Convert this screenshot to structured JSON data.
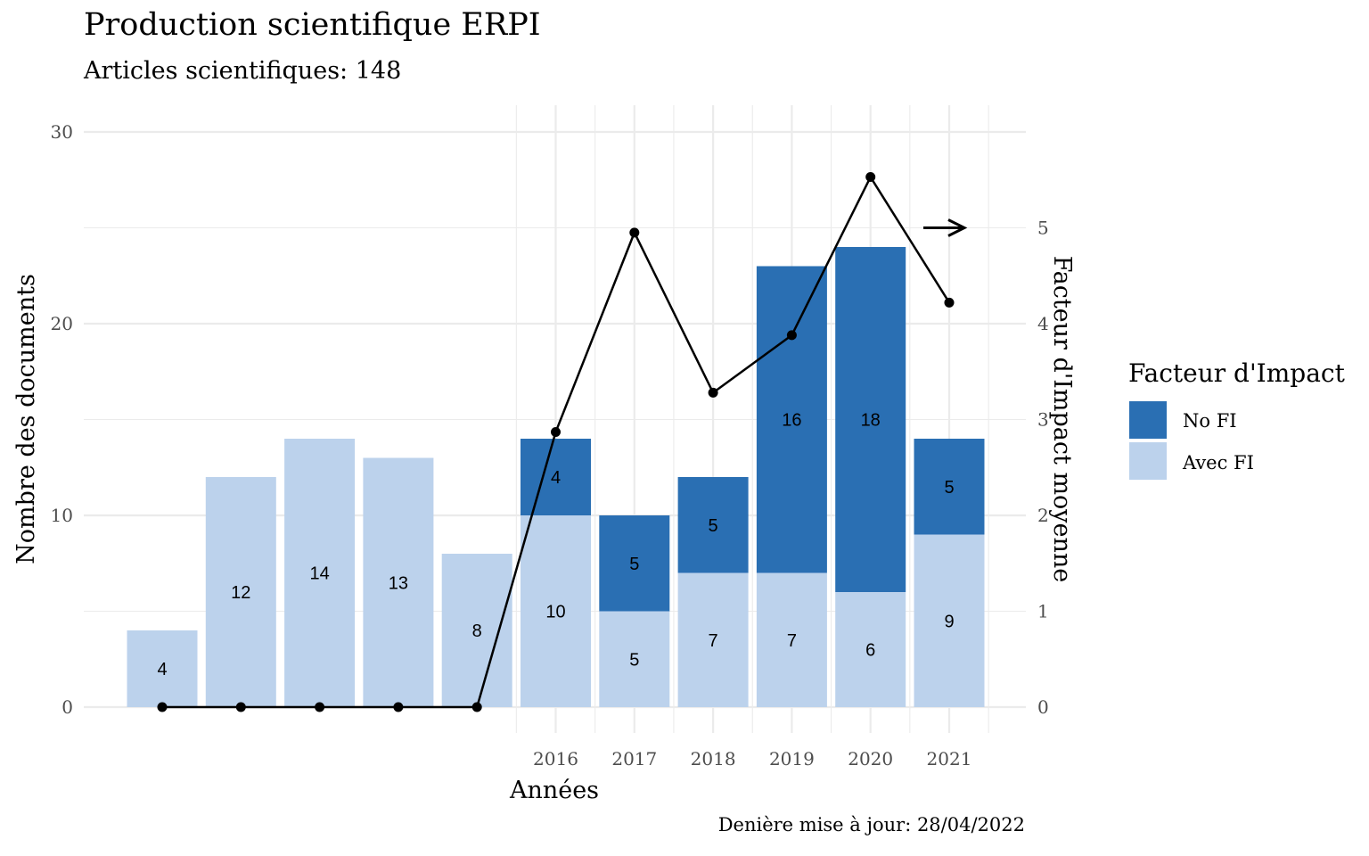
{
  "chart_data": {
    "type": "bar",
    "stacked": true,
    "title": "Production scientifique ERPI",
    "subtitle": "Articles scientifiques: 148",
    "caption": "Denière mise à jour: 28/04/2022",
    "xlabel": "Années",
    "ylabel": "Nombre des documents",
    "y2label": "Facteur d'Impact moyenne",
    "ylim": [
      0,
      30
    ],
    "y2lim": [
      0,
      6
    ],
    "y_ticks": [
      0,
      10,
      20,
      30
    ],
    "y2_ticks": [
      0,
      1,
      2,
      3,
      4,
      5
    ],
    "categories": [
      "",
      "",
      "",
      "",
      "",
      "2016",
      "2017",
      "2018",
      "2019",
      "2020",
      "2021"
    ],
    "grid": true,
    "legend": {
      "title": "Facteur d'Impact",
      "position": "right",
      "entries": [
        "No FI",
        "Avec FI"
      ]
    },
    "series": [
      {
        "name": "Avec FI",
        "color": "#bcd2ec",
        "values": [
          4,
          12,
          14,
          13,
          8,
          10,
          5,
          7,
          7,
          6,
          9
        ]
      },
      {
        "name": "No FI",
        "color": "#2a6fb3",
        "values": [
          0,
          0,
          0,
          0,
          0,
          4,
          5,
          5,
          16,
          18,
          5
        ]
      }
    ],
    "line": {
      "axis": "secondary",
      "color": "#000000",
      "values": [
        0,
        0,
        0,
        0,
        0,
        2.87,
        4.95,
        3.28,
        3.88,
        5.53,
        4.22
      ]
    },
    "annotation": {
      "type": "arrow",
      "direction": "right",
      "y2": 5
    }
  }
}
